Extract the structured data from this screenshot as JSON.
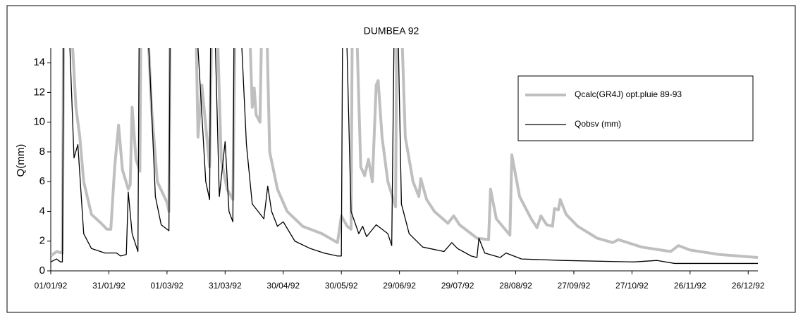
{
  "chart_data": {
    "type": "line",
    "title": "DUMBEA 92",
    "y_label": "Q(mm)",
    "xlim": [
      "01/01/92",
      "31/12/92"
    ],
    "xticks": [
      "01/01/92",
      "31/01/92",
      "01/03/92",
      "31/03/92",
      "30/04/92",
      "30/05/92",
      "29/06/92",
      "29/07/92",
      "28/08/92",
      "27/09/92",
      "27/10/92",
      "26/11/92",
      "26/12/92"
    ],
    "ylim": [
      0,
      15
    ],
    "yticks": [
      0,
      2,
      4,
      6,
      8,
      10,
      12,
      14
    ],
    "grid": false,
    "legend_position": "upper right",
    "series": [
      {
        "name": "Qcalc(GR4J) opt.pluie 89-93",
        "color": "#bfbfbf",
        "x": [
          "01/01/92",
          "04/01/92",
          "07/01/92",
          "08/01/92",
          "14/01/92",
          "16/01/92",
          "18/01/92",
          "22/01/92",
          "27/01/92",
          "30/01/92",
          "01/02/92",
          "03/02/92",
          "05/02/92",
          "07/02/92",
          "10/02/92",
          "11/02/92",
          "12/02/92",
          "14/02/92",
          "16/02/92",
          "17/02/92",
          "22/02/92",
          "25/02/92",
          "01/03/92",
          "02/03/92",
          "03/03/92",
          "16/03/92",
          "17/03/92",
          "19/03/92",
          "23/03/92",
          "25/03/92",
          "29/03/92",
          "01/04/92",
          "04/04/92",
          "06/04/92",
          "13/04/92",
          "14/04/92",
          "15/04/92",
          "16/04/92",
          "18/04/92",
          "20/04/92",
          "23/04/92",
          "27/04/92",
          "02/05/92",
          "10/05/92",
          "20/05/92",
          "28/05/92",
          "30/05/92",
          "02/06/92",
          "04/06/92",
          "05/06/92",
          "09/06/92",
          "11/06/92",
          "13/06/92",
          "15/06/92",
          "17/06/92",
          "18/06/92",
          "20/06/92",
          "23/06/92",
          "27/06/92",
          "28/06/92",
          "02/07/92",
          "06/07/92",
          "09/07/92",
          "10/07/92",
          "13/07/92",
          "17/07/92",
          "24/07/92",
          "27/07/92",
          "30/07/92",
          "08/08/92",
          "14/08/92",
          "15/08/92",
          "18/08/92",
          "25/08/92",
          "26/08/92",
          "30/08/92",
          "05/09/92",
          "08/09/92",
          "10/09/92",
          "13/09/92",
          "16/09/92",
          "17/09/92",
          "19/09/92",
          "20/09/92",
          "23/09/92",
          "29/09/92",
          "09/10/92",
          "17/10/92",
          "20/10/92",
          "01/11/92",
          "16/11/92",
          "20/11/92",
          "26/11/92",
          "11/12/92",
          "31/12/92"
        ],
        "values": [
          1.0,
          1.3,
          1.2,
          25,
          11,
          9,
          6,
          3.8,
          3.2,
          2.8,
          2.8,
          7,
          9.8,
          6.8,
          5.5,
          5.8,
          11,
          7.5,
          6.7,
          25,
          11,
          6,
          4.6,
          4,
          25,
          16,
          9,
          12.5,
          7,
          25,
          7.5,
          5.5,
          4.8,
          25,
          15,
          11,
          12.3,
          10.5,
          10,
          25,
          8,
          5.5,
          4,
          3,
          2.5,
          1.9,
          3.7,
          3.0,
          2.8,
          25,
          7,
          6.4,
          7.5,
          6,
          12.5,
          12.8,
          9,
          6,
          4.3,
          25,
          9,
          6,
          5,
          6.2,
          4.8,
          4,
          3.2,
          3.7,
          3.1,
          2.2,
          2.1,
          5.5,
          3.5,
          2.4,
          7.8,
          5,
          3.5,
          2.9,
          3.7,
          3.1,
          3.0,
          4.2,
          4.1,
          4.8,
          3.8,
          3.0,
          2.2,
          1.9,
          2.1,
          1.6,
          1.3,
          1.7,
          1.4,
          1.1,
          0.9
        ]
      },
      {
        "name": "Qobsv (mm)",
        "color": "#000000",
        "x": [
          "01/01/92",
          "04/01/92",
          "06/01/92",
          "07/01/92",
          "08/01/92",
          "13/01/92",
          "15/01/92",
          "17/01/92",
          "18/01/92",
          "22/01/92",
          "29/01/92",
          "04/02/92",
          "06/02/92",
          "09/02/92",
          "10/02/92",
          "12/02/92",
          "15/02/92",
          "16/02/92",
          "21/02/92",
          "24/02/92",
          "27/02/92",
          "01/03/92",
          "02/03/92",
          "03/03/92",
          "09/03/92",
          "17/03/92",
          "21/03/92",
          "23/03/92",
          "24/03/92",
          "28/03/92",
          "31/03/92",
          "02/04/92",
          "04/04/92",
          "05/04/92",
          "11/04/92",
          "14/04/92",
          "20/04/92",
          "22/04/92",
          "24/04/92",
          "27/04/92",
          "30/04/92",
          "06/05/92",
          "14/05/92",
          "21/05/92",
          "28/05/92",
          "30/05/92",
          "31/05/92",
          "04/06/92",
          "08/06/92",
          "10/06/92",
          "12/06/92",
          "17/06/92",
          "23/06/92",
          "25/06/92",
          "27/06/92",
          "30/06/92",
          "04/07/92",
          "11/07/92",
          "22/07/92",
          "26/07/92",
          "29/07/92",
          "05/08/92",
          "08/08/92",
          "09/08/92",
          "12/08/92",
          "20/08/92",
          "23/08/92",
          "31/08/92",
          "21/09/92",
          "28/10/92",
          "09/11/92",
          "18/11/92",
          "31/12/92"
        ],
        "values": [
          0.6,
          0.8,
          0.6,
          0.6,
          25,
          7.6,
          8.5,
          4.5,
          2.5,
          1.5,
          1.2,
          1.2,
          1.0,
          1.1,
          5.3,
          2.5,
          1.3,
          25,
          14,
          5,
          3.1,
          2.8,
          2.7,
          25,
          25,
          15,
          6,
          4.8,
          25,
          5,
          8.7,
          4,
          3.3,
          25,
          8.5,
          4.5,
          3.5,
          5.7,
          4,
          3,
          3.3,
          2,
          1.5,
          1.2,
          1.0,
          1.0,
          25,
          4,
          2.5,
          3,
          2.3,
          3.1,
          2.5,
          1.7,
          25,
          4.5,
          2.5,
          1.6,
          1.3,
          1.9,
          1.5,
          1.0,
          0.9,
          2.2,
          1.2,
          0.9,
          1.2,
          0.8,
          0.7,
          0.6,
          0.7,
          0.5,
          0.5
        ]
      }
    ]
  }
}
